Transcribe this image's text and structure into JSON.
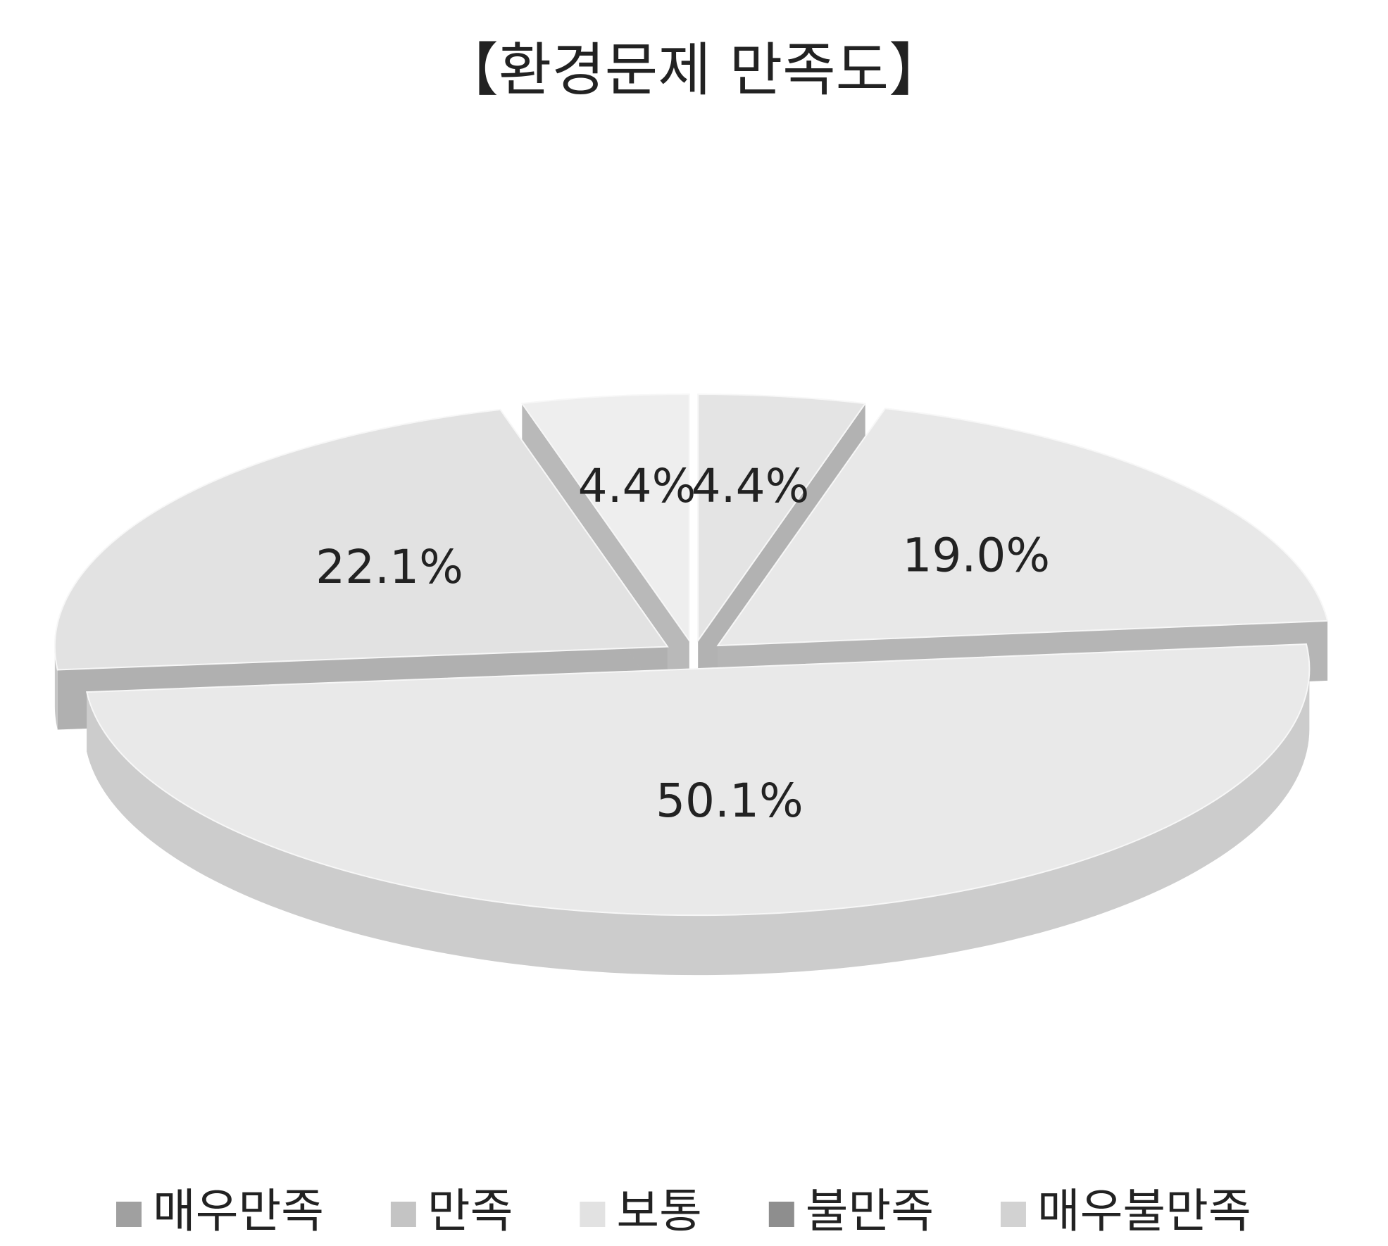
{
  "chart_data": {
    "type": "pie",
    "title": "【환경문제 만족도】",
    "categories": [
      "매우만족",
      "만족",
      "보통",
      "불만족",
      "매우불만족"
    ],
    "values": [
      4.4,
      19.0,
      50.1,
      22.1,
      4.4
    ],
    "value_labels": [
      "4.4%",
      "19.0%",
      "50.1%",
      "22.1%",
      "4.4%"
    ],
    "colors": [
      "#e4e4e4",
      "#e8e8e8",
      "#e9e9e9",
      "#e2e2e2",
      "#eeeeee"
    ],
    "legend_colors": [
      "#a0a0a0",
      "#c4c4c4",
      "#e2e2e2",
      "#8e8e8e",
      "#d2d2d2"
    ],
    "legend": "bottom"
  }
}
